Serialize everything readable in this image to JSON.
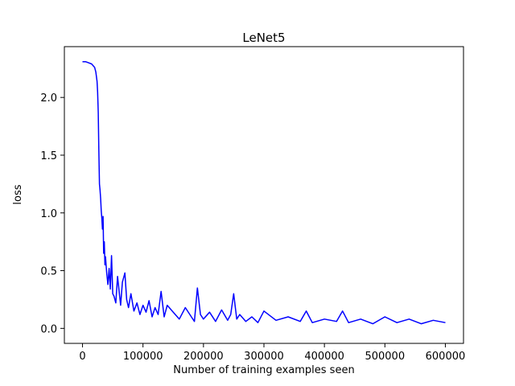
{
  "chart_data": {
    "type": "line",
    "title": "LeNet5",
    "xlabel": "Number of training examples seen",
    "ylabel": "loss",
    "xlim": [
      -30000,
      630000
    ],
    "ylim": [
      -0.13,
      2.44
    ],
    "xticks": [
      0,
      100000,
      200000,
      300000,
      400000,
      500000,
      600000
    ],
    "xtick_labels": [
      "0",
      "100000",
      "200000",
      "300000",
      "400000",
      "500000",
      "600000"
    ],
    "yticks": [
      0.0,
      0.5,
      1.0,
      1.5,
      2.0
    ],
    "ytick_labels": [
      "0.0",
      "0.5",
      "1.0",
      "1.5",
      "2.0"
    ],
    "grid": false,
    "series": [
      {
        "color": "#0000ff",
        "x": [
          0,
          5000,
          10000,
          15000,
          20000,
          22000,
          24000,
          25000,
          26000,
          27000,
          28000,
          29000,
          30000,
          31000,
          32000,
          33000,
          34000,
          35000,
          36000,
          37000,
          38000,
          40000,
          42000,
          44000,
          46000,
          48000,
          50000,
          52000,
          55000,
          58000,
          60000,
          63000,
          66000,
          70000,
          73000,
          76000,
          80000,
          85000,
          90000,
          95000,
          100000,
          105000,
          110000,
          115000,
          120000,
          125000,
          130000,
          135000,
          140000,
          150000,
          160000,
          170000,
          180000,
          185000,
          190000,
          195000,
          200000,
          210000,
          220000,
          230000,
          240000,
          245000,
          250000,
          255000,
          260000,
          270000,
          280000,
          290000,
          300000,
          320000,
          340000,
          360000,
          370000,
          380000,
          400000,
          420000,
          430000,
          440000,
          460000,
          480000,
          500000,
          520000,
          540000,
          560000,
          580000,
          600000
        ],
        "values": [
          2.31,
          2.31,
          2.3,
          2.29,
          2.26,
          2.22,
          2.14,
          2.05,
          1.87,
          1.55,
          1.25,
          1.2,
          1.12,
          1.02,
          0.95,
          0.86,
          0.97,
          0.65,
          0.75,
          0.55,
          0.62,
          0.48,
          0.38,
          0.52,
          0.34,
          0.63,
          0.3,
          0.28,
          0.22,
          0.45,
          0.35,
          0.2,
          0.4,
          0.48,
          0.25,
          0.18,
          0.3,
          0.15,
          0.22,
          0.12,
          0.2,
          0.14,
          0.24,
          0.1,
          0.18,
          0.12,
          0.32,
          0.1,
          0.2,
          0.14,
          0.08,
          0.18,
          0.1,
          0.06,
          0.35,
          0.12,
          0.08,
          0.14,
          0.06,
          0.16,
          0.07,
          0.12,
          0.3,
          0.08,
          0.12,
          0.06,
          0.1,
          0.05,
          0.15,
          0.07,
          0.1,
          0.06,
          0.15,
          0.05,
          0.08,
          0.06,
          0.15,
          0.05,
          0.08,
          0.04,
          0.1,
          0.05,
          0.08,
          0.04,
          0.07,
          0.05
        ]
      }
    ]
  }
}
